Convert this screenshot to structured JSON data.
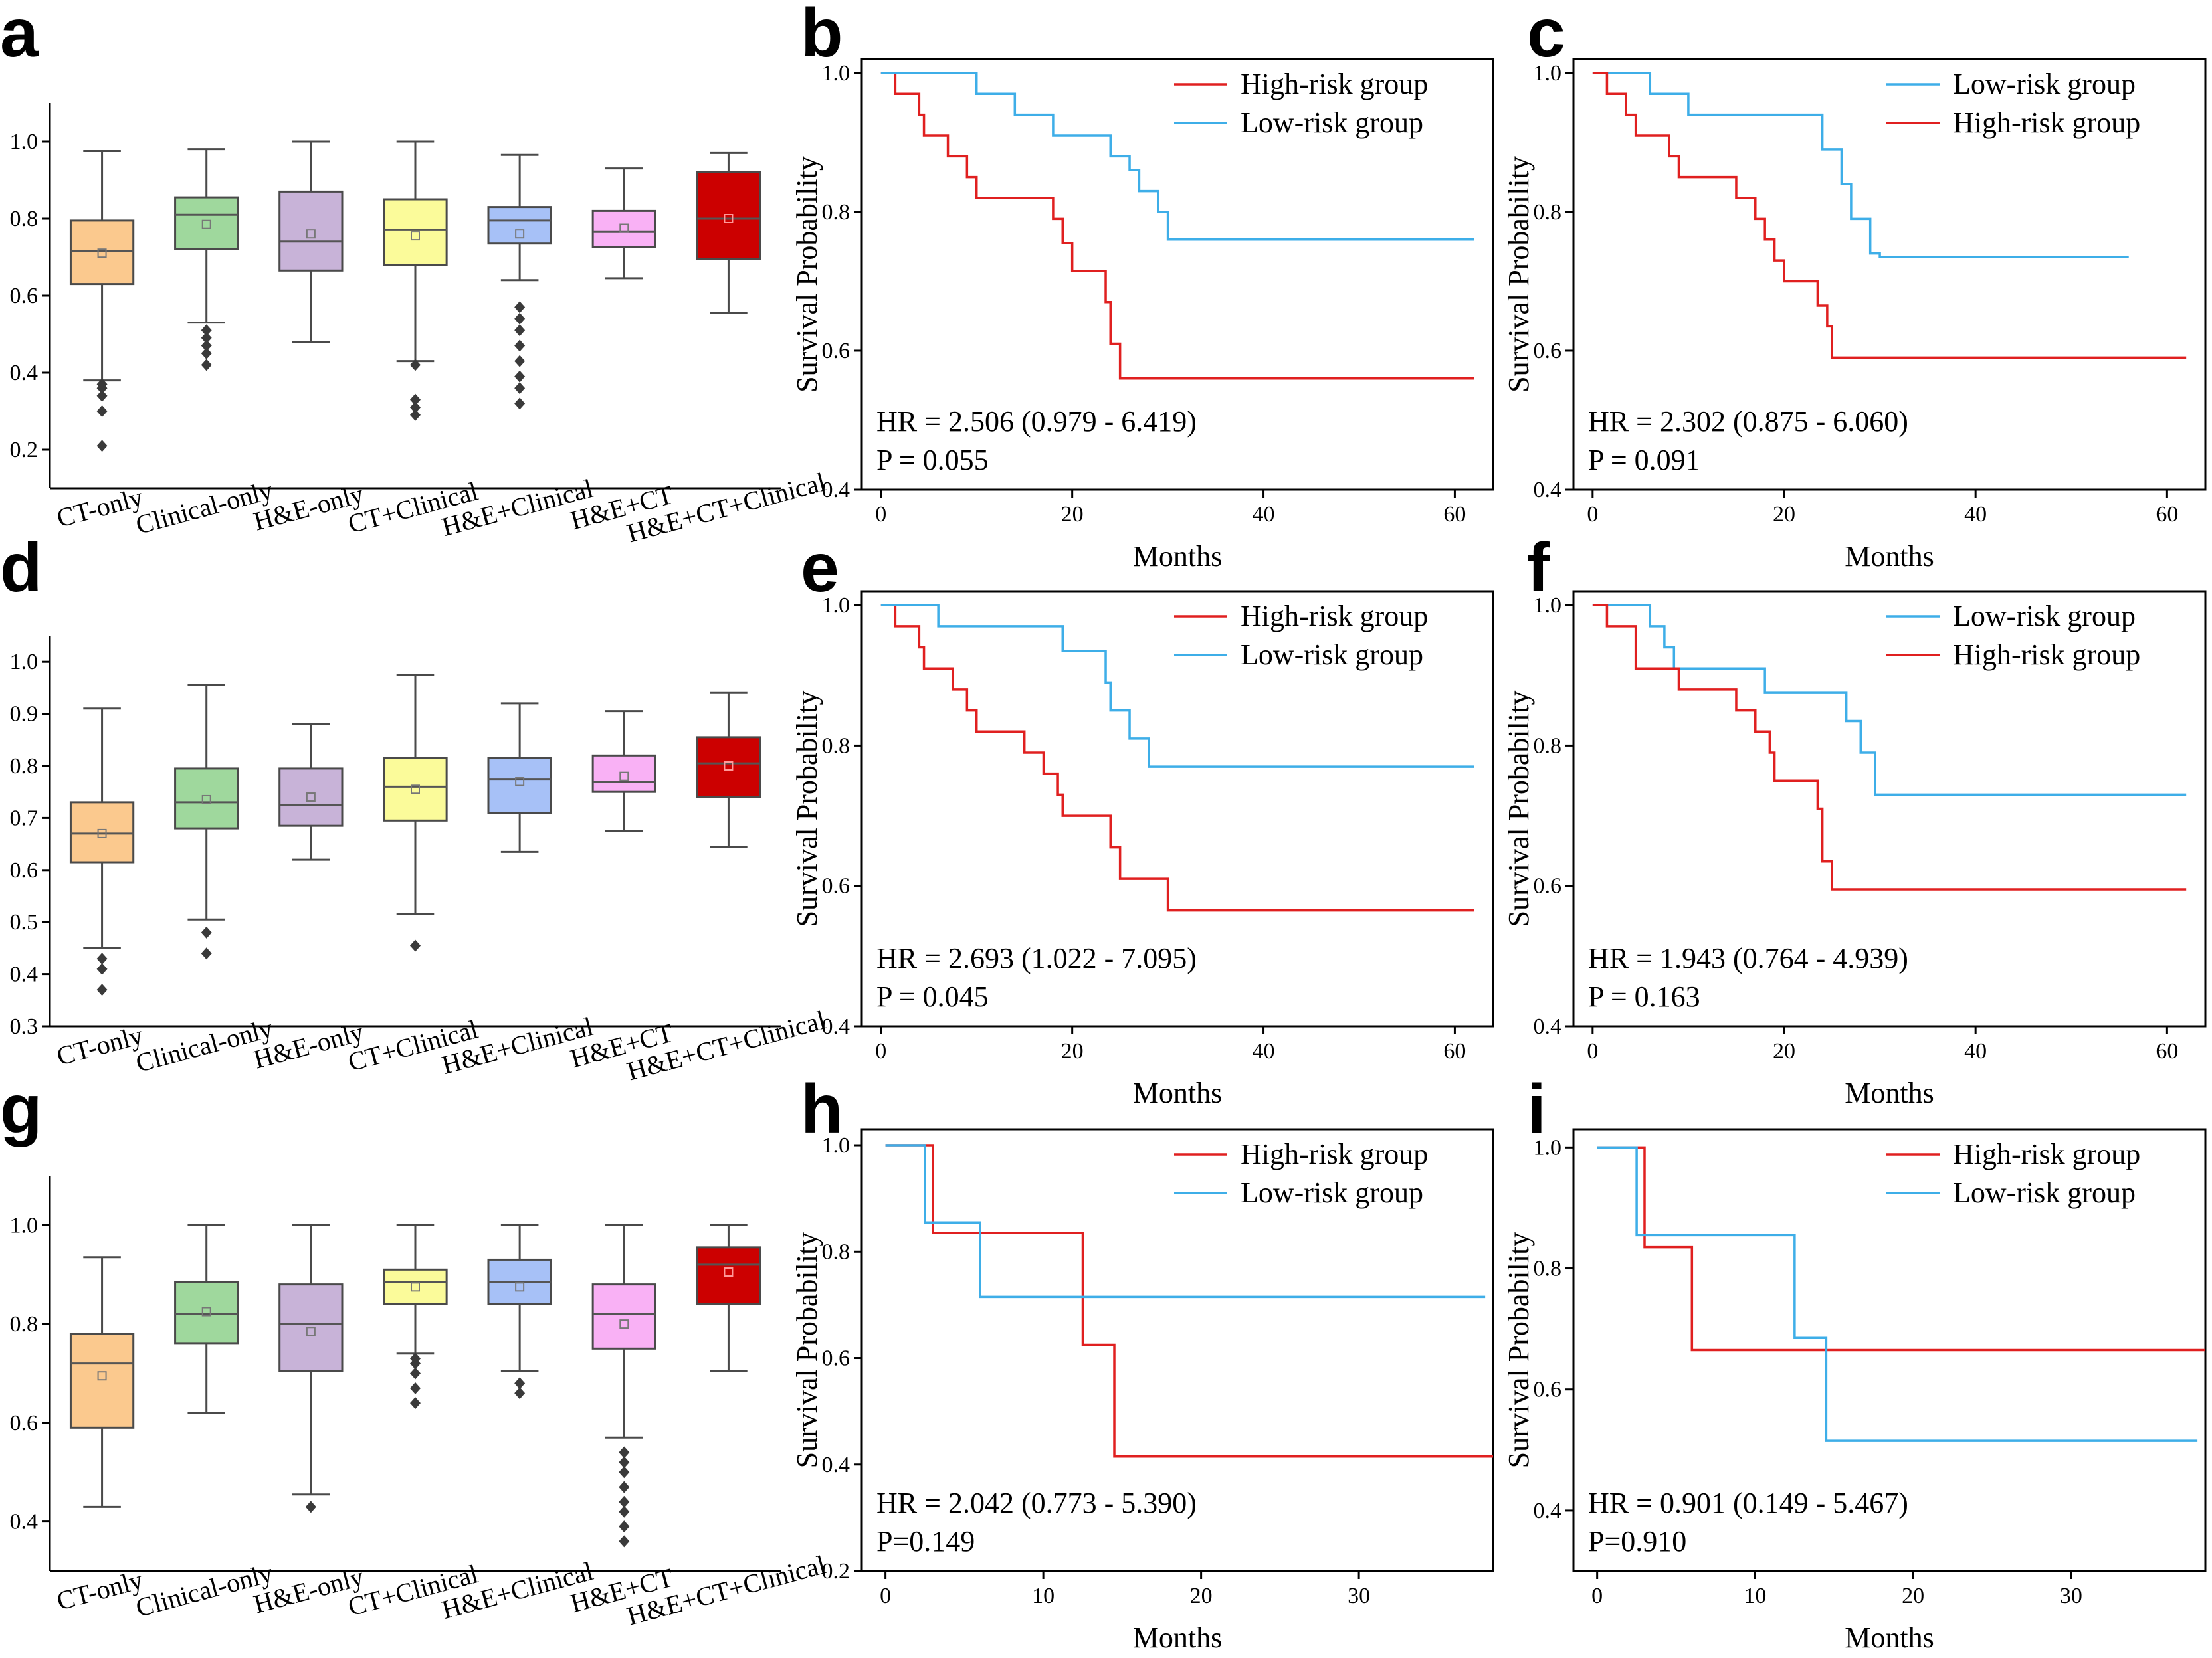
{
  "colors": {
    "high_risk": "#e02020",
    "low_risk": "#3eaee8",
    "box_fills": [
      "#fbc98e",
      "#9fd89d",
      "#c8b3d8",
      "#fbfb9a",
      "#a7c1f7",
      "#f9b1f5",
      "#cc0000"
    ],
    "box_edge": "#4a4a4a",
    "outlier": "#3a3a3a"
  },
  "chart_data": [
    {
      "panel": "a",
      "type": "box",
      "categories": [
        "CT-only",
        "Clinical-only",
        "H&E-only",
        "CT+Clinical",
        "H&E+Clinical",
        "H&E+CT",
        "H&E+CT+Clinical"
      ],
      "ylim": [
        0.1,
        1.1
      ],
      "yticks": [
        "0.2",
        "0.4",
        "0.6",
        "0.8",
        "1.0"
      ],
      "boxes": [
        {
          "min": 0.38,
          "q1": 0.63,
          "median": 0.715,
          "q3": 0.795,
          "max": 0.975,
          "mean": 0.71,
          "outliers": [
            0.21,
            0.3,
            0.34,
            0.36,
            0.37
          ]
        },
        {
          "min": 0.53,
          "q1": 0.72,
          "median": 0.81,
          "q3": 0.855,
          "max": 0.98,
          "mean": 0.785,
          "outliers": [
            0.42,
            0.45,
            0.47,
            0.49,
            0.51
          ]
        },
        {
          "min": 0.48,
          "q1": 0.665,
          "median": 0.74,
          "q3": 0.87,
          "max": 1.0,
          "mean": 0.76,
          "outliers": []
        },
        {
          "min": 0.43,
          "q1": 0.68,
          "median": 0.77,
          "q3": 0.85,
          "max": 1.0,
          "mean": 0.755,
          "outliers": [
            0.29,
            0.31,
            0.33,
            0.42
          ]
        },
        {
          "min": 0.64,
          "q1": 0.735,
          "median": 0.795,
          "q3": 0.83,
          "max": 0.965,
          "mean": 0.76,
          "outliers": [
            0.32,
            0.36,
            0.39,
            0.43,
            0.47,
            0.51,
            0.54,
            0.57
          ]
        },
        {
          "min": 0.645,
          "q1": 0.725,
          "median": 0.765,
          "q3": 0.82,
          "max": 0.93,
          "mean": 0.775,
          "outliers": []
        },
        {
          "min": 0.555,
          "q1": 0.695,
          "median": 0.8,
          "q3": 0.92,
          "max": 0.97,
          "mean": 0.8,
          "outliers": []
        }
      ]
    },
    {
      "panel": "b",
      "type": "line",
      "subtype": "km",
      "xlabel": "Months",
      "ylabel": "Survival Probability",
      "xlim": [
        -2,
        64
      ],
      "ylim": [
        0.4,
        1.02
      ],
      "xticks": [
        "0",
        "20",
        "40",
        "60"
      ],
      "yticks": [
        "0.4",
        "0.6",
        "0.8",
        "1.0"
      ],
      "legend": [
        "High-risk group",
        "Low-risk group"
      ],
      "hr_text": "HR = 2.506 (0.979 - 6.419)",
      "p_text": "P = 0.055",
      "series": [
        {
          "name": "High-risk group",
          "group": "high",
          "x": [
            0,
            1.5,
            4,
            4.5,
            7,
            9,
            10,
            18,
            19,
            20,
            23.5,
            24,
            25,
            62
          ],
          "y": [
            1,
            0.97,
            0.94,
            0.91,
            0.88,
            0.85,
            0.82,
            0.79,
            0.755,
            0.715,
            0.67,
            0.61,
            0.56,
            0.56
          ]
        },
        {
          "name": "Low-risk group",
          "group": "low",
          "x": [
            0,
            10,
            14,
            18,
            24,
            26,
            27,
            29,
            30,
            62
          ],
          "y": [
            1,
            0.97,
            0.94,
            0.91,
            0.88,
            0.86,
            0.83,
            0.8,
            0.76,
            0.76
          ]
        }
      ]
    },
    {
      "panel": "c",
      "type": "line",
      "subtype": "km",
      "xlabel": "Months",
      "ylabel": "Survival Probability",
      "xlim": [
        -2,
        64
      ],
      "ylim": [
        0.4,
        1.02
      ],
      "xticks": [
        "0",
        "20",
        "40",
        "60"
      ],
      "yticks": [
        "0.4",
        "0.6",
        "0.8",
        "1.0"
      ],
      "legend": [
        "Low-risk group",
        "High-risk group"
      ],
      "hr_text": "HR = 2.302 (0.875 - 6.060)",
      "p_text": "P = 0.091",
      "series": [
        {
          "name": "Low-risk group",
          "group": "low",
          "x": [
            0,
            2,
            6,
            10,
            24,
            26,
            27,
            29,
            30,
            56
          ],
          "y": [
            1,
            1,
            0.97,
            0.94,
            0.89,
            0.84,
            0.79,
            0.74,
            0.735,
            0.735
          ]
        },
        {
          "name": "High-risk group",
          "group": "high",
          "x": [
            0,
            1.5,
            3.5,
            4.5,
            8,
            9,
            15,
            17,
            18,
            19,
            20,
            23.5,
            24.5,
            25,
            62
          ],
          "y": [
            1,
            0.97,
            0.94,
            0.91,
            0.88,
            0.85,
            0.82,
            0.79,
            0.76,
            0.73,
            0.7,
            0.665,
            0.635,
            0.59,
            0.59
          ]
        }
      ]
    },
    {
      "panel": "d",
      "type": "box",
      "categories": [
        "CT-only",
        "Clinical-only",
        "H&E-only",
        "CT+Clinical",
        "H&E+Clinical",
        "H&E+CT",
        "H&E+CT+Clinical"
      ],
      "ylim": [
        0.3,
        1.05
      ],
      "yticks": [
        "0.3",
        "0.4",
        "0.5",
        "0.6",
        "0.7",
        "0.8",
        "0.9",
        "1.0"
      ],
      "boxes": [
        {
          "min": 0.45,
          "q1": 0.615,
          "median": 0.67,
          "q3": 0.73,
          "max": 0.91,
          "mean": 0.67,
          "outliers": [
            0.37,
            0.41,
            0.43
          ]
        },
        {
          "min": 0.505,
          "q1": 0.68,
          "median": 0.73,
          "q3": 0.795,
          "max": 0.955,
          "mean": 0.735,
          "outliers": [
            0.44,
            0.48
          ]
        },
        {
          "min": 0.62,
          "q1": 0.685,
          "median": 0.725,
          "q3": 0.795,
          "max": 0.88,
          "mean": 0.74,
          "outliers": []
        },
        {
          "min": 0.515,
          "q1": 0.695,
          "median": 0.76,
          "q3": 0.815,
          "max": 0.975,
          "mean": 0.755,
          "outliers": [
            0.455
          ]
        },
        {
          "min": 0.635,
          "q1": 0.71,
          "median": 0.775,
          "q3": 0.815,
          "max": 0.92,
          "mean": 0.77,
          "outliers": []
        },
        {
          "min": 0.675,
          "q1": 0.75,
          "median": 0.77,
          "q3": 0.82,
          "max": 0.905,
          "mean": 0.78,
          "outliers": []
        },
        {
          "min": 0.645,
          "q1": 0.74,
          "median": 0.805,
          "q3": 0.855,
          "max": 0.94,
          "mean": 0.8,
          "outliers": []
        }
      ]
    },
    {
      "panel": "e",
      "type": "line",
      "subtype": "km",
      "xlabel": "Months",
      "ylabel": "Survival Probability",
      "xlim": [
        -2,
        64
      ],
      "ylim": [
        0.4,
        1.02
      ],
      "xticks": [
        "0",
        "20",
        "40",
        "60"
      ],
      "yticks": [
        "0.4",
        "0.6",
        "0.8",
        "1.0"
      ],
      "legend": [
        "High-risk group",
        "Low-risk group"
      ],
      "hr_text": "HR = 2.693 (1.022 - 7.095)",
      "p_text": "P = 0.045",
      "series": [
        {
          "name": "High-risk group",
          "group": "high",
          "x": [
            0,
            1.5,
            4,
            4.5,
            7.5,
            9,
            10,
            15,
            17,
            18.5,
            19,
            24,
            25,
            30,
            62
          ],
          "y": [
            1,
            0.97,
            0.94,
            0.91,
            0.88,
            0.85,
            0.82,
            0.79,
            0.76,
            0.73,
            0.7,
            0.655,
            0.61,
            0.565,
            0.565
          ]
        },
        {
          "name": "Low-risk group",
          "group": "low",
          "x": [
            0,
            6,
            19,
            23.5,
            24,
            26,
            28,
            62
          ],
          "y": [
            1,
            0.97,
            0.935,
            0.89,
            0.85,
            0.81,
            0.77,
            0.77
          ]
        }
      ]
    },
    {
      "panel": "f",
      "type": "line",
      "subtype": "km",
      "xlabel": "Months",
      "ylabel": "Survival Probability",
      "xlim": [
        -2,
        64
      ],
      "ylim": [
        0.4,
        1.02
      ],
      "xticks": [
        "0",
        "20",
        "40",
        "60"
      ],
      "yticks": [
        "0.4",
        "0.6",
        "0.8",
        "1.0"
      ],
      "legend": [
        "Low-risk group",
        "High-risk group"
      ],
      "hr_text": "HR = 1.943 (0.764 - 4.939)",
      "p_text": "P = 0.163",
      "series": [
        {
          "name": "Low-risk group",
          "group": "low",
          "x": [
            0,
            6,
            7.5,
            8.5,
            10,
            18,
            24,
            26.5,
            28,
            29.5,
            62
          ],
          "y": [
            1,
            0.97,
            0.94,
            0.91,
            0.91,
            0.875,
            0.875,
            0.835,
            0.79,
            0.73,
            0.73
          ]
        },
        {
          "name": "High-risk group",
          "group": "high",
          "x": [
            0,
            1.5,
            4.5,
            9,
            15,
            17,
            18.5,
            19,
            23.5,
            24,
            25,
            62
          ],
          "y": [
            1,
            0.97,
            0.91,
            0.88,
            0.85,
            0.82,
            0.79,
            0.75,
            0.71,
            0.635,
            0.595,
            0.595
          ]
        }
      ]
    },
    {
      "panel": "g",
      "type": "box",
      "categories": [
        "CT-only",
        "Clinical-only",
        "H&E-only",
        "CT+Clinical",
        "H&E+Clinical",
        "H&E+CT",
        "H&E+CT+Clinical"
      ],
      "ylim": [
        0.3,
        1.1
      ],
      "yticks": [
        "0.4",
        "0.6",
        "0.8",
        "1.0"
      ],
      "boxes": [
        {
          "min": 0.43,
          "q1": 0.59,
          "median": 0.72,
          "q3": 0.78,
          "max": 0.935,
          "mean": 0.695,
          "outliers": []
        },
        {
          "min": 0.62,
          "q1": 0.76,
          "median": 0.82,
          "q3": 0.885,
          "max": 1.0,
          "mean": 0.825,
          "outliers": []
        },
        {
          "min": 0.455,
          "q1": 0.705,
          "median": 0.8,
          "q3": 0.88,
          "max": 1.0,
          "mean": 0.785,
          "outliers": [
            0.43
          ]
        },
        {
          "min": 0.74,
          "q1": 0.84,
          "median": 0.885,
          "q3": 0.91,
          "max": 1.0,
          "mean": 0.875,
          "outliers": [
            0.64,
            0.67,
            0.7,
            0.72,
            0.73
          ]
        },
        {
          "min": 0.705,
          "q1": 0.84,
          "median": 0.885,
          "q3": 0.93,
          "max": 1.0,
          "mean": 0.875,
          "outliers": [
            0.66,
            0.68
          ]
        },
        {
          "min": 0.57,
          "q1": 0.75,
          "median": 0.82,
          "q3": 0.88,
          "max": 1.0,
          "mean": 0.8,
          "outliers": [
            0.36,
            0.39,
            0.42,
            0.44,
            0.47,
            0.5,
            0.52,
            0.54
          ]
        },
        {
          "min": 0.705,
          "q1": 0.84,
          "median": 0.92,
          "q3": 0.955,
          "max": 1.0,
          "mean": 0.905,
          "outliers": []
        }
      ]
    },
    {
      "panel": "h",
      "type": "line",
      "subtype": "km",
      "xlabel": "Months",
      "ylabel": "Survival Probability",
      "xlim": [
        -1.5,
        38.5
      ],
      "ylim": [
        0.2,
        1.03
      ],
      "xticks": [
        "0",
        "10",
        "20",
        "30"
      ],
      "yticks": [
        "0.2",
        "0.4",
        "0.6",
        "0.8",
        "1.0"
      ],
      "legend": [
        "High-risk group",
        "Low-risk group"
      ],
      "hr_text": "HR = 2.042 (0.773 - 5.390)",
      "p_text": "P=0.149",
      "series": [
        {
          "name": "High-risk group",
          "group": "high",
          "x": [
            0,
            3,
            12.5,
            14.5,
            38.5
          ],
          "y": [
            1,
            0.835,
            0.625,
            0.415,
            0.415
          ]
        },
        {
          "name": "Low-risk group",
          "group": "low",
          "x": [
            0,
            2.5,
            6,
            38
          ],
          "y": [
            1,
            0.855,
            0.715,
            0.715
          ]
        }
      ]
    },
    {
      "panel": "i",
      "type": "line",
      "subtype": "km",
      "xlabel": "Months",
      "ylabel": "Survival Probability",
      "xlim": [
        -1.5,
        38.5
      ],
      "ylim": [
        0.3,
        1.03
      ],
      "xticks": [
        "0",
        "10",
        "20",
        "30"
      ],
      "yticks": [
        "0.4",
        "0.6",
        "0.8",
        "1.0"
      ],
      "legend": [
        "High-risk group",
        "Low-risk group"
      ],
      "hr_text": "HR = 0.901 (0.149 - 5.467)",
      "p_text": "P=0.910",
      "series": [
        {
          "name": "High-risk group",
          "group": "high",
          "x": [
            0,
            3,
            6,
            38.5
          ],
          "y": [
            1,
            0.835,
            0.665,
            0.665
          ]
        },
        {
          "name": "Low-risk group",
          "group": "low",
          "x": [
            0,
            2.5,
            12.5,
            14.5,
            38
          ],
          "y": [
            1,
            0.855,
            0.685,
            0.515,
            0.515
          ]
        }
      ]
    }
  ]
}
